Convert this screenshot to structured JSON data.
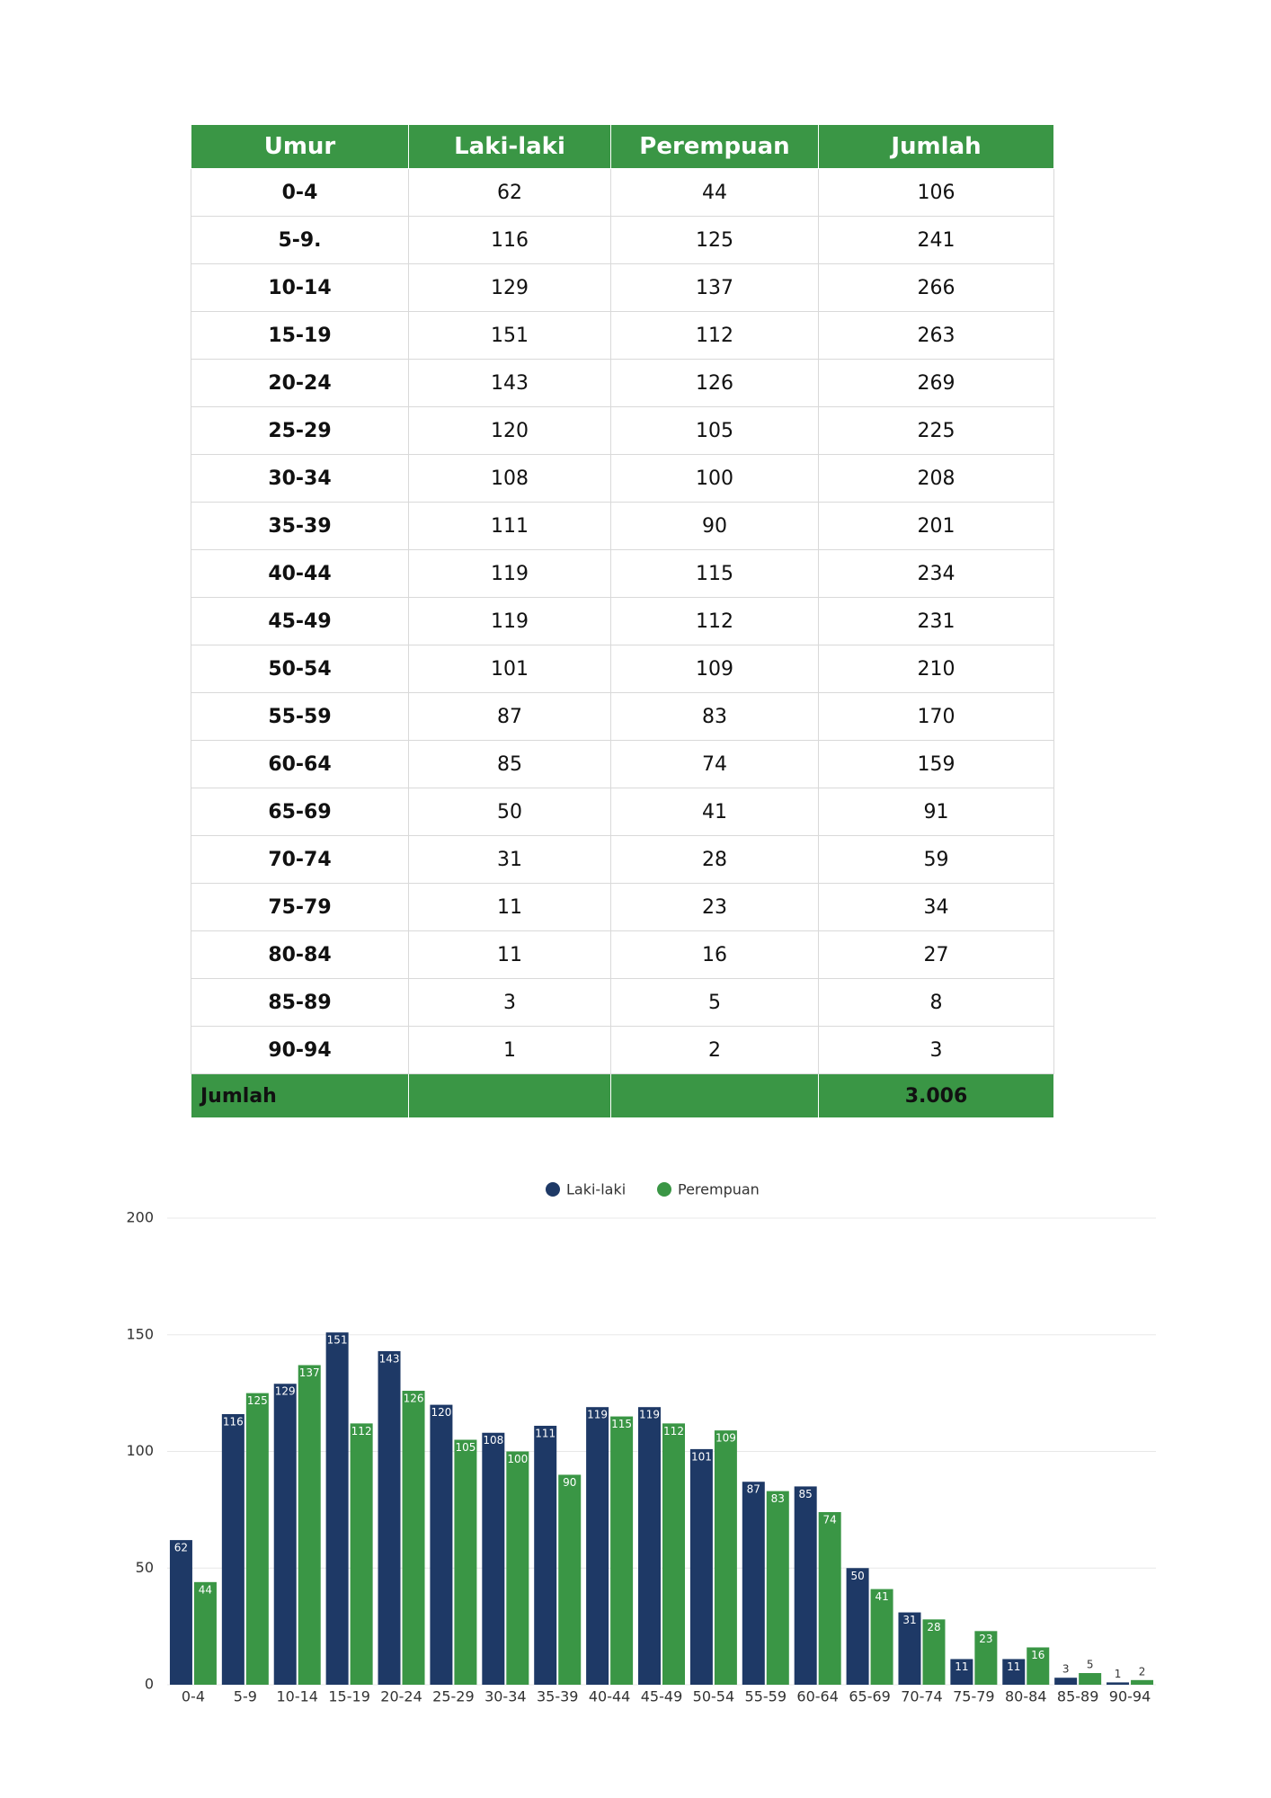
{
  "table": {
    "header": [
      "Umur",
      "Laki-laki",
      "Perempuan",
      "Jumlah"
    ],
    "rows": [
      [
        "0-4",
        62,
        44,
        106
      ],
      [
        "5-9.",
        116,
        125,
        241
      ],
      [
        "10-14",
        129,
        137,
        266
      ],
      [
        "15-19",
        151,
        112,
        263
      ],
      [
        "20-24",
        143,
        126,
        269
      ],
      [
        "25-29",
        120,
        105,
        225
      ],
      [
        "30-34",
        108,
        100,
        208
      ],
      [
        "35-39",
        111,
        90,
        201
      ],
      [
        "40-44",
        119,
        115,
        234
      ],
      [
        "45-49",
        119,
        112,
        231
      ],
      [
        "50-54",
        101,
        109,
        210
      ],
      [
        "55-59",
        87,
        83,
        170
      ],
      [
        "60-64",
        85,
        74,
        159
      ],
      [
        "65-69",
        50,
        41,
        91
      ],
      [
        "70-74",
        31,
        28,
        59
      ],
      [
        "75-79",
        11,
        23,
        34
      ],
      [
        "80-84",
        11,
        16,
        27
      ],
      [
        "85-89",
        3,
        5,
        8
      ],
      [
        "90-94",
        1,
        2,
        3
      ]
    ],
    "total_row": {
      "label": "Jumlah",
      "value": "3.006"
    }
  },
  "chart_data": {
    "type": "bar",
    "categories": [
      "0-4",
      "5-9",
      "10-14",
      "15-19",
      "20-24",
      "25-29",
      "30-34",
      "35-39",
      "40-44",
      "45-49",
      "50-54",
      "55-59",
      "60-64",
      "65-69",
      "70-74",
      "75-79",
      "80-84",
      "85-89",
      "90-94"
    ],
    "series": [
      {
        "name": "Laki-laki",
        "color": "#1e3966",
        "values": [
          62,
          116,
          129,
          151,
          143,
          120,
          108,
          111,
          119,
          119,
          101,
          87,
          85,
          50,
          31,
          11,
          11,
          3,
          1
        ]
      },
      {
        "name": "Perempuan",
        "color": "#3a9645",
        "values": [
          44,
          125,
          137,
          112,
          126,
          105,
          100,
          90,
          115,
          112,
          109,
          83,
          74,
          41,
          28,
          23,
          16,
          5,
          2
        ]
      }
    ],
    "ylim": [
      0,
      200
    ],
    "yticks": [
      0,
      50,
      100,
      150,
      200
    ],
    "grid": true,
    "legend": "top"
  }
}
